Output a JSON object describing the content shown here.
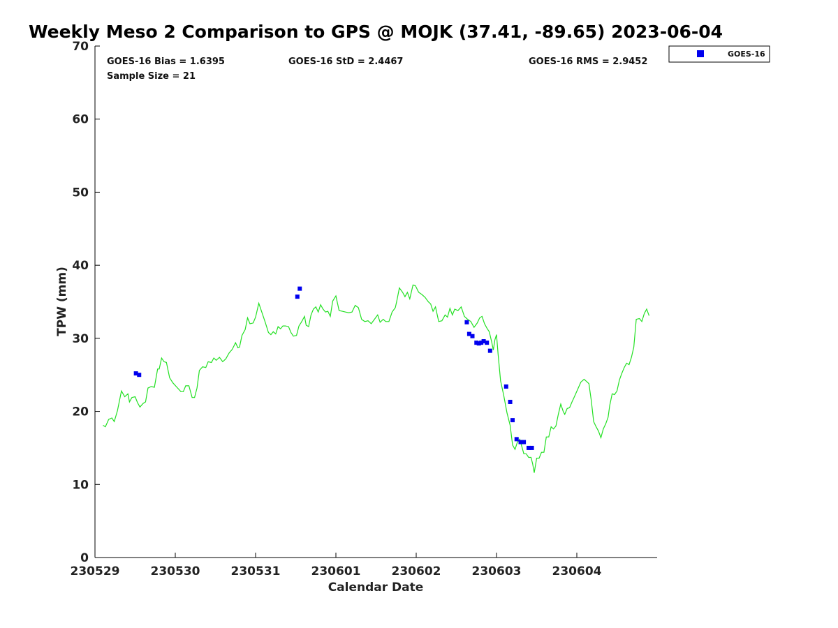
{
  "chart_data": {
    "type": "scatter",
    "title": "Weekly Meso 2 Comparison to GPS @ MOJK (37.41, -89.65) 2023-06-04",
    "xlabel": "Calendar Date",
    "ylabel": "TPW (mm)",
    "ylim": [
      0,
      70
    ],
    "xlim": [
      0,
      7
    ],
    "x_ticks": [
      0,
      1,
      2,
      3,
      4,
      5,
      6
    ],
    "x_tick_labels": [
      "230529",
      "230530",
      "230531",
      "230601",
      "230602",
      "230603",
      "230604"
    ],
    "y_ticks": [
      0,
      10,
      20,
      30,
      40,
      50,
      60,
      70
    ],
    "y_tick_labels": [
      "0",
      "10",
      "20",
      "30",
      "40",
      "50",
      "60",
      "70"
    ],
    "grid": false,
    "legend": {
      "placement": "top-right outside",
      "entries": [
        "GOES-16"
      ]
    },
    "stats": {
      "bias": "GOES-16 Bias = 1.6395",
      "std": "GOES-16 StD = 2.4467",
      "rms": "GOES-16 RMS = 2.9452",
      "sample_size": "Sample Size = 21"
    },
    "series": [
      {
        "kind": "line",
        "color": "#22e022",
        "points": [
          [
            0.1,
            18.1
          ],
          [
            0.13,
            17.9
          ],
          [
            0.17,
            18.9
          ],
          [
            0.21,
            19.1
          ],
          [
            0.24,
            18.6
          ],
          [
            0.28,
            20.1
          ],
          [
            0.33,
            22.8
          ],
          [
            0.37,
            22.0
          ],
          [
            0.41,
            22.4
          ],
          [
            0.43,
            21.3
          ],
          [
            0.46,
            21.9
          ],
          [
            0.5,
            22.0
          ],
          [
            0.53,
            21.2
          ],
          [
            0.56,
            20.6
          ],
          [
            0.6,
            21.1
          ],
          [
            0.63,
            21.3
          ],
          [
            0.66,
            23.2
          ],
          [
            0.7,
            23.4
          ],
          [
            0.74,
            23.3
          ],
          [
            0.78,
            25.8
          ],
          [
            0.8,
            25.8
          ],
          [
            0.83,
            27.3
          ],
          [
            0.86,
            26.8
          ],
          [
            0.89,
            26.7
          ],
          [
            0.93,
            24.6
          ],
          [
            0.97,
            23.9
          ],
          [
            1.02,
            23.3
          ],
          [
            1.07,
            22.7
          ],
          [
            1.1,
            22.7
          ],
          [
            1.13,
            23.5
          ],
          [
            1.17,
            23.5
          ],
          [
            1.21,
            21.9
          ],
          [
            1.24,
            21.9
          ],
          [
            1.27,
            23.2
          ],
          [
            1.3,
            25.6
          ],
          [
            1.34,
            26.1
          ],
          [
            1.38,
            26.0
          ],
          [
            1.41,
            26.8
          ],
          [
            1.45,
            26.7
          ],
          [
            1.48,
            27.3
          ],
          [
            1.51,
            27.0
          ],
          [
            1.55,
            27.4
          ],
          [
            1.59,
            26.8
          ],
          [
            1.63,
            27.2
          ],
          [
            1.67,
            28.0
          ],
          [
            1.71,
            28.5
          ],
          [
            1.75,
            29.4
          ],
          [
            1.78,
            28.7
          ],
          [
            1.8,
            28.8
          ],
          [
            1.83,
            30.4
          ],
          [
            1.87,
            31.2
          ],
          [
            1.9,
            32.8
          ],
          [
            1.93,
            32.0
          ],
          [
            1.97,
            32.1
          ],
          [
            2.0,
            32.9
          ],
          [
            2.04,
            34.8
          ],
          [
            2.08,
            33.5
          ],
          [
            2.12,
            32.2
          ],
          [
            2.16,
            30.8
          ],
          [
            2.19,
            30.5
          ],
          [
            2.22,
            30.9
          ],
          [
            2.25,
            30.6
          ],
          [
            2.28,
            31.6
          ],
          [
            2.31,
            31.3
          ],
          [
            2.34,
            31.7
          ],
          [
            2.37,
            31.7
          ],
          [
            2.41,
            31.6
          ],
          [
            2.44,
            30.8
          ],
          [
            2.47,
            30.3
          ],
          [
            2.51,
            30.4
          ],
          [
            2.54,
            31.7
          ],
          [
            2.57,
            32.2
          ],
          [
            2.61,
            33.0
          ],
          [
            2.63,
            31.8
          ],
          [
            2.66,
            31.6
          ],
          [
            2.69,
            33.2
          ],
          [
            2.72,
            34.0
          ],
          [
            2.75,
            34.3
          ],
          [
            2.78,
            33.6
          ],
          [
            2.81,
            34.6
          ],
          [
            2.84,
            34.0
          ],
          [
            2.87,
            33.6
          ],
          [
            2.9,
            33.7
          ],
          [
            2.93,
            33.0
          ],
          [
            2.96,
            35.1
          ],
          [
            3.0,
            35.8
          ],
          [
            3.04,
            33.8
          ],
          [
            3.08,
            33.7
          ],
          [
            3.12,
            33.6
          ],
          [
            3.16,
            33.5
          ],
          [
            3.2,
            33.6
          ],
          [
            3.24,
            34.5
          ],
          [
            3.28,
            34.2
          ],
          [
            3.32,
            32.6
          ],
          [
            3.36,
            32.3
          ],
          [
            3.4,
            32.4
          ],
          [
            3.44,
            32.0
          ],
          [
            3.48,
            32.6
          ],
          [
            3.52,
            33.2
          ],
          [
            3.55,
            32.2
          ],
          [
            3.59,
            32.6
          ],
          [
            3.62,
            32.3
          ],
          [
            3.66,
            32.3
          ],
          [
            3.7,
            33.6
          ],
          [
            3.74,
            34.2
          ],
          [
            3.76,
            35.2
          ],
          [
            3.79,
            36.9
          ],
          [
            3.83,
            36.3
          ],
          [
            3.86,
            35.7
          ],
          [
            3.89,
            36.3
          ],
          [
            3.92,
            35.4
          ],
          [
            3.96,
            37.3
          ],
          [
            3.99,
            37.2
          ],
          [
            4.03,
            36.3
          ],
          [
            4.07,
            36.0
          ],
          [
            4.11,
            35.6
          ],
          [
            4.15,
            35.0
          ],
          [
            4.18,
            34.7
          ],
          [
            4.21,
            33.7
          ],
          [
            4.24,
            34.3
          ],
          [
            4.28,
            32.3
          ],
          [
            4.32,
            32.4
          ],
          [
            4.36,
            33.2
          ],
          [
            4.39,
            32.9
          ],
          [
            4.42,
            34.1
          ],
          [
            4.45,
            33.2
          ],
          [
            4.48,
            34.0
          ],
          [
            4.52,
            33.8
          ],
          [
            4.56,
            34.3
          ],
          [
            4.6,
            33.0
          ],
          [
            4.64,
            32.6
          ],
          [
            4.68,
            32.3
          ],
          [
            4.72,
            31.5
          ],
          [
            4.76,
            32.1
          ],
          [
            4.79,
            32.8
          ],
          [
            4.82,
            33.0
          ],
          [
            4.85,
            32.0
          ],
          [
            4.88,
            31.4
          ],
          [
            4.91,
            30.9
          ],
          [
            4.94,
            29.5
          ],
          [
            4.96,
            28.4
          ],
          [
            4.98,
            29.8
          ],
          [
            5.0,
            30.5
          ],
          [
            5.02,
            27.8
          ],
          [
            5.05,
            24.2
          ],
          [
            5.09,
            22.2
          ],
          [
            5.13,
            19.8
          ],
          [
            5.17,
            18.1
          ],
          [
            5.2,
            15.4
          ],
          [
            5.23,
            14.8
          ],
          [
            5.26,
            15.8
          ],
          [
            5.29,
            16.2
          ],
          [
            5.31,
            15.4
          ],
          [
            5.34,
            14.2
          ],
          [
            5.37,
            14.2
          ],
          [
            5.4,
            13.7
          ],
          [
            5.43,
            13.7
          ],
          [
            5.45,
            12.8
          ],
          [
            5.47,
            11.6
          ],
          [
            5.5,
            13.6
          ],
          [
            5.53,
            13.6
          ],
          [
            5.56,
            14.4
          ],
          [
            5.59,
            14.4
          ],
          [
            5.62,
            16.5
          ],
          [
            5.65,
            16.5
          ],
          [
            5.68,
            17.9
          ],
          [
            5.71,
            17.6
          ],
          [
            5.74,
            18.0
          ],
          [
            5.77,
            19.6
          ],
          [
            5.8,
            21.0
          ],
          [
            5.83,
            20.0
          ],
          [
            5.85,
            19.6
          ],
          [
            5.88,
            20.4
          ],
          [
            5.91,
            20.5
          ],
          [
            5.94,
            21.3
          ],
          [
            5.97,
            22.0
          ],
          [
            6.01,
            23.0
          ],
          [
            6.05,
            24.0
          ],
          [
            6.09,
            24.4
          ],
          [
            6.12,
            24.1
          ],
          [
            6.15,
            23.8
          ],
          [
            6.18,
            21.5
          ],
          [
            6.21,
            18.6
          ],
          [
            6.24,
            17.9
          ],
          [
            6.27,
            17.3
          ],
          [
            6.3,
            16.4
          ],
          [
            6.33,
            17.6
          ],
          [
            6.36,
            18.3
          ],
          [
            6.39,
            19.2
          ],
          [
            6.41,
            20.8
          ],
          [
            6.44,
            22.4
          ],
          [
            6.47,
            22.3
          ],
          [
            6.5,
            22.8
          ],
          [
            6.53,
            24.3
          ],
          [
            6.56,
            25.2
          ],
          [
            6.59,
            26.0
          ],
          [
            6.62,
            26.6
          ],
          [
            6.65,
            26.4
          ],
          [
            6.68,
            27.4
          ],
          [
            6.71,
            28.8
          ],
          [
            6.74,
            32.6
          ],
          [
            6.78,
            32.7
          ],
          [
            6.81,
            32.3
          ],
          [
            6.84,
            33.4
          ],
          [
            6.87,
            34.0
          ],
          [
            6.9,
            33.1
          ]
        ]
      },
      {
        "name": "GOES-16",
        "kind": "scatter",
        "color": "#0000ee",
        "points": [
          [
            0.51,
            25.2
          ],
          [
            0.55,
            25.0
          ],
          [
            2.52,
            35.7
          ],
          [
            2.55,
            36.8
          ],
          [
            4.63,
            32.2
          ],
          [
            4.66,
            30.6
          ],
          [
            4.7,
            30.3
          ],
          [
            4.75,
            29.4
          ],
          [
            4.78,
            29.3
          ],
          [
            4.81,
            29.4
          ],
          [
            4.84,
            29.6
          ],
          [
            4.88,
            29.4
          ],
          [
            4.92,
            28.3
          ],
          [
            5.12,
            23.4
          ],
          [
            5.17,
            21.3
          ],
          [
            5.2,
            18.8
          ],
          [
            5.25,
            16.2
          ],
          [
            5.3,
            15.8
          ],
          [
            5.34,
            15.8
          ],
          [
            5.4,
            15.0
          ],
          [
            5.44,
            15.0
          ]
        ]
      }
    ]
  }
}
